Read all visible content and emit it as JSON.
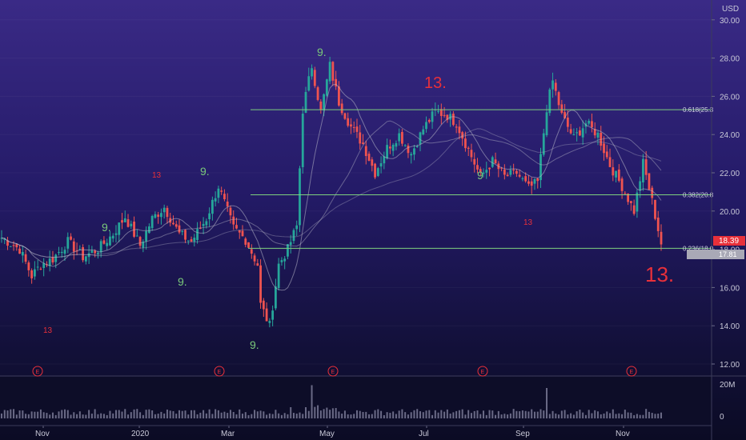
{
  "currency_label": "USD",
  "price_tag": "18.39",
  "secondary_tag": "17.81",
  "volume_label": "20M",
  "volume_zero_label": "0",
  "earnings_marker": "E",
  "colors": {
    "up": "#26a69a",
    "down": "#ef5350",
    "fib": "#7ed07e",
    "accent": "#e8303a",
    "ma": "#b8b8c8",
    "bg_top": "#3a2a86",
    "bg_bottom": "#0b0b24"
  },
  "chart_data": {
    "type": "candlestick",
    "title": "",
    "ylim": [
      11.5,
      31
    ],
    "y_ticks": [
      "12.00",
      "14.00",
      "16.00",
      "18.00",
      "20.00",
      "22.00",
      "24.00",
      "26.00",
      "28.00",
      "30.00"
    ],
    "y_tick_values": [
      12,
      14,
      16,
      18,
      20,
      22,
      24,
      26,
      28,
      30
    ],
    "x_ticks": [
      "Nov",
      "2020",
      "Mar",
      "May",
      "Jul",
      "Sep",
      "Nov"
    ],
    "fib_levels": [
      {
        "label": "0.618(25.3",
        "value": 25.3
      },
      {
        "label": "0.382(20.8",
        "value": 20.85
      },
      {
        "label": "0.236(18.0",
        "value": 18.05
      }
    ],
    "td_labels": [
      "9.",
      "13",
      "9.",
      "9.",
      "9.",
      "13.",
      "9",
      "13",
      "9.",
      "13",
      "13."
    ],
    "close_anchors": [
      [
        0,
        18.6
      ],
      [
        6,
        18.0
      ],
      [
        10,
        16.6
      ],
      [
        13,
        17.2
      ],
      [
        17,
        17.5
      ],
      [
        22,
        18.4
      ],
      [
        27,
        17.6
      ],
      [
        32,
        18.0
      ],
      [
        37,
        18.8
      ],
      [
        41,
        19.7
      ],
      [
        46,
        18.2
      ],
      [
        50,
        19.6
      ],
      [
        54,
        20.2
      ],
      [
        59,
        18.8
      ],
      [
        63,
        18.4
      ],
      [
        68,
        19.6
      ],
      [
        72,
        21.3
      ],
      [
        77,
        19.1
      ],
      [
        81,
        18.5
      ],
      [
        85,
        17.2
      ],
      [
        86,
        15.1
      ],
      [
        89,
        14.0
      ],
      [
        92,
        17.2
      ],
      [
        95,
        18.0
      ],
      [
        98,
        19.2
      ],
      [
        100,
        25.3
      ],
      [
        103,
        27.6
      ],
      [
        106,
        25.2
      ],
      [
        109,
        27.6
      ],
      [
        112,
        25.7
      ],
      [
        116,
        24.4
      ],
      [
        120,
        23.5
      ],
      [
        124,
        22.0
      ],
      [
        128,
        23.3
      ],
      [
        132,
        24.0
      ],
      [
        136,
        23.0
      ],
      [
        140,
        24.3
      ],
      [
        144,
        25.2
      ],
      [
        148,
        25.0
      ],
      [
        151,
        24.6
      ],
      [
        155,
        23.2
      ],
      [
        159,
        21.8
      ],
      [
        163,
        22.6
      ],
      [
        167,
        21.8
      ],
      [
        171,
        22.0
      ],
      [
        175,
        21.2
      ],
      [
        178,
        21.5
      ],
      [
        181,
        25.4
      ],
      [
        183,
        26.8
      ],
      [
        186,
        25.0
      ],
      [
        190,
        23.8
      ],
      [
        194,
        24.6
      ],
      [
        198,
        24.0
      ],
      [
        202,
        22.4
      ],
      [
        206,
        21.3
      ],
      [
        210,
        20.0
      ],
      [
        213,
        22.5
      ],
      [
        216,
        20.5
      ],
      [
        219,
        18.3
      ]
    ],
    "volume_spike_indices": [
      103,
      181
    ]
  }
}
